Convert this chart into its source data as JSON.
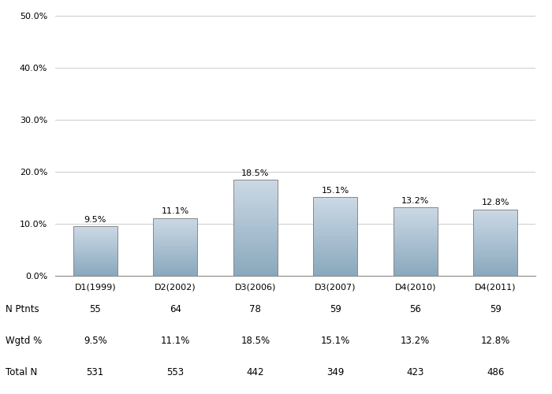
{
  "categories": [
    "D1(1999)",
    "D2(2002)",
    "D3(2006)",
    "D3(2007)",
    "D4(2010)",
    "D4(2011)"
  ],
  "values": [
    9.5,
    11.1,
    18.5,
    15.1,
    13.2,
    12.8
  ],
  "labels": [
    "9.5%",
    "11.1%",
    "18.5%",
    "15.1%",
    "13.2%",
    "12.8%"
  ],
  "n_ptnts": [
    "55",
    "64",
    "78",
    "59",
    "56",
    "59"
  ],
  "wgtd_pct": [
    "9.5%",
    "11.1%",
    "18.5%",
    "15.1%",
    "13.2%",
    "12.8%"
  ],
  "total_n": [
    "531",
    "553",
    "442",
    "349",
    "423",
    "486"
  ],
  "ylim": [
    0,
    50
  ],
  "yticks": [
    0,
    10,
    20,
    30,
    40,
    50
  ],
  "ytick_labels": [
    "0.0%",
    "10.0%",
    "20.0%",
    "30.0%",
    "40.0%",
    "50.0%"
  ],
  "bar_color_light": [
    0.8,
    0.85,
    0.9
  ],
  "bar_color_dark": [
    0.54,
    0.66,
    0.74
  ],
  "bar_edge_color": "#888888",
  "background_color": "#ffffff",
  "grid_color": "#cccccc",
  "table_row_labels": [
    "N Ptnts",
    "Wgtd %",
    "Total N"
  ],
  "label_fontsize": 8,
  "tick_fontsize": 8,
  "table_fontsize": 8.5,
  "n_gradient_steps": 80
}
